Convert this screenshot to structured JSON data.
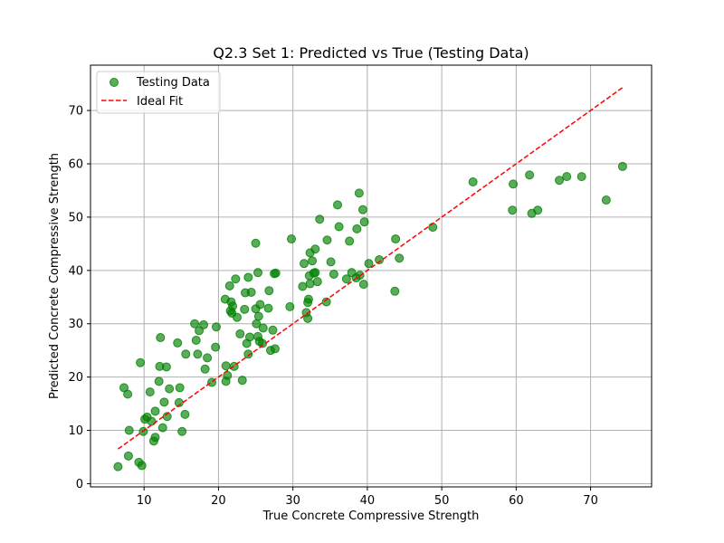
{
  "chart_data": {
    "type": "scatter",
    "title": "Q2.3 Set 1: Predicted vs True (Testing Data)",
    "xlabel": "True Concrete Compressive Strength",
    "ylabel": "Predicted Concrete Compressive Strength",
    "xlim": [
      2.8,
      78.2
    ],
    "ylim": [
      -0.6,
      78.5
    ],
    "xticks": [
      10,
      20,
      30,
      40,
      50,
      60,
      70
    ],
    "yticks": [
      0,
      10,
      20,
      30,
      40,
      50,
      60,
      70
    ],
    "grid": true,
    "legend_position": "top-left",
    "series": [
      {
        "name": "Testing Data",
        "kind": "scatter",
        "color": "#008000",
        "points": [
          [
            6.5,
            3.2
          ],
          [
            7.9,
            5.2
          ],
          [
            9.3,
            4.0
          ],
          [
            9.7,
            3.4
          ],
          [
            7.3,
            18.0
          ],
          [
            7.8,
            16.8
          ],
          [
            8.0,
            10.0
          ],
          [
            9.5,
            22.7
          ],
          [
            9.9,
            9.8
          ],
          [
            10.1,
            12.1
          ],
          [
            10.4,
            12.5
          ],
          [
            10.8,
            17.2
          ],
          [
            11.0,
            11.7
          ],
          [
            11.3,
            8.0
          ],
          [
            11.5,
            8.7
          ],
          [
            11.5,
            13.6
          ],
          [
            12.0,
            19.2
          ],
          [
            12.1,
            22.0
          ],
          [
            12.2,
            27.4
          ],
          [
            12.5,
            10.5
          ],
          [
            12.7,
            15.3
          ],
          [
            13.0,
            21.9
          ],
          [
            13.1,
            12.6
          ],
          [
            13.4,
            17.8
          ],
          [
            14.5,
            26.4
          ],
          [
            14.7,
            15.2
          ],
          [
            14.8,
            18.0
          ],
          [
            15.1,
            9.8
          ],
          [
            15.5,
            13.0
          ],
          [
            15.6,
            24.3
          ],
          [
            16.8,
            30.0
          ],
          [
            17.0,
            26.9
          ],
          [
            17.2,
            24.3
          ],
          [
            17.4,
            28.7
          ],
          [
            18.0,
            29.8
          ],
          [
            18.2,
            21.5
          ],
          [
            18.5,
            23.6
          ],
          [
            19.1,
            19.0
          ],
          [
            19.6,
            25.6
          ],
          [
            19.7,
            29.4
          ],
          [
            20.9,
            34.6
          ],
          [
            21.0,
            22.1
          ],
          [
            21.0,
            19.2
          ],
          [
            21.2,
            20.3
          ],
          [
            21.5,
            37.1
          ],
          [
            21.6,
            32.4
          ],
          [
            21.7,
            34.1
          ],
          [
            21.8,
            32.0
          ],
          [
            21.9,
            33.3
          ],
          [
            22.1,
            22.0
          ],
          [
            22.3,
            38.4
          ],
          [
            22.5,
            31.2
          ],
          [
            22.9,
            28.1
          ],
          [
            23.2,
            19.4
          ],
          [
            23.5,
            32.7
          ],
          [
            23.6,
            35.8
          ],
          [
            23.8,
            26.3
          ],
          [
            24.0,
            38.7
          ],
          [
            24.0,
            24.3
          ],
          [
            24.2,
            27.5
          ],
          [
            24.4,
            35.9
          ],
          [
            25.0,
            45.1
          ],
          [
            25.0,
            32.8
          ],
          [
            25.1,
            30.0
          ],
          [
            25.3,
            39.6
          ],
          [
            25.3,
            27.6
          ],
          [
            25.4,
            31.4
          ],
          [
            25.5,
            26.7
          ],
          [
            25.6,
            33.6
          ],
          [
            25.9,
            26.3
          ],
          [
            26.0,
            29.2
          ],
          [
            26.7,
            32.9
          ],
          [
            26.8,
            36.2
          ],
          [
            27.0,
            25.0
          ],
          [
            27.3,
            28.8
          ],
          [
            27.5,
            39.4
          ],
          [
            27.6,
            25.3
          ],
          [
            27.7,
            39.5
          ],
          [
            29.6,
            33.2
          ],
          [
            29.8,
            45.9
          ],
          [
            31.3,
            37.0
          ],
          [
            31.5,
            41.3
          ],
          [
            31.8,
            32.1
          ],
          [
            32.0,
            34.0
          ],
          [
            32.0,
            31.0
          ],
          [
            32.1,
            34.6
          ],
          [
            32.2,
            39.0
          ],
          [
            32.3,
            37.5
          ],
          [
            32.3,
            43.3
          ],
          [
            32.6,
            41.8
          ],
          [
            32.8,
            39.5
          ],
          [
            33.0,
            44.0
          ],
          [
            33.0,
            39.6
          ],
          [
            33.3,
            37.9
          ],
          [
            33.6,
            49.6
          ],
          [
            34.5,
            34.1
          ],
          [
            34.6,
            45.7
          ],
          [
            35.1,
            41.6
          ],
          [
            35.5,
            39.3
          ],
          [
            36.0,
            52.3
          ],
          [
            36.2,
            48.2
          ],
          [
            37.2,
            38.4
          ],
          [
            37.6,
            45.5
          ],
          [
            37.9,
            39.6
          ],
          [
            38.5,
            38.6
          ],
          [
            38.6,
            47.8
          ],
          [
            38.9,
            54.5
          ],
          [
            39.0,
            39.1
          ],
          [
            39.4,
            51.4
          ],
          [
            39.5,
            37.4
          ],
          [
            39.6,
            49.1
          ],
          [
            40.2,
            41.3
          ],
          [
            41.6,
            42.0
          ],
          [
            43.7,
            36.1
          ],
          [
            43.8,
            45.9
          ],
          [
            44.3,
            42.3
          ],
          [
            48.8,
            48.1
          ],
          [
            54.2,
            56.6
          ],
          [
            59.5,
            51.3
          ],
          [
            59.6,
            56.2
          ],
          [
            61.8,
            57.9
          ],
          [
            62.1,
            50.7
          ],
          [
            62.9,
            51.3
          ],
          [
            65.8,
            56.9
          ],
          [
            66.8,
            57.6
          ],
          [
            68.8,
            57.6
          ],
          [
            72.1,
            53.2
          ],
          [
            74.3,
            59.5
          ]
        ]
      },
      {
        "name": "Ideal Fit",
        "kind": "line",
        "color": "#ff0000",
        "dash": "dashed",
        "points": [
          [
            6.5,
            6.5
          ],
          [
            74.5,
            74.5
          ]
        ]
      }
    ]
  }
}
